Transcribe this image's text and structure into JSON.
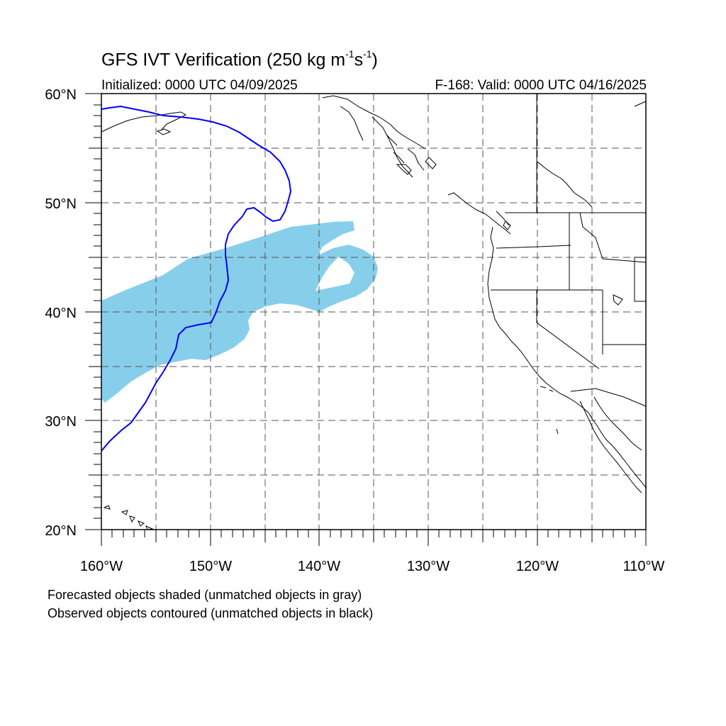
{
  "title": {
    "main": "GFS IVT Verification (250 kg m",
    "exp1": "-1",
    "mid": "s",
    "exp2": "-1",
    "end": ")"
  },
  "initialized": "Initialized: 0000 UTC 04/09/2025",
  "valid": "F-168: Valid: 0000 UTC 04/16/2025",
  "map": {
    "lon_range": [
      -160,
      -110
    ],
    "lat_range": [
      20,
      60
    ],
    "lat_labels": [
      "60°N",
      "50°N",
      "40°N",
      "30°N",
      "20°N"
    ],
    "lon_labels": [
      "160°W",
      "150°W",
      "140°W",
      "130°W",
      "120°W",
      "110°W"
    ],
    "gridlines": "dashed every 5°",
    "forecast_fill_color": "#87ceeb",
    "observed_contour_color": "#0000ff",
    "coastline_color": "#000000"
  },
  "notes": [
    "Forecasted objects shaded (unmatched objects in gray)",
    "Observed objects contoured (unmatched objects in black)"
  ]
}
